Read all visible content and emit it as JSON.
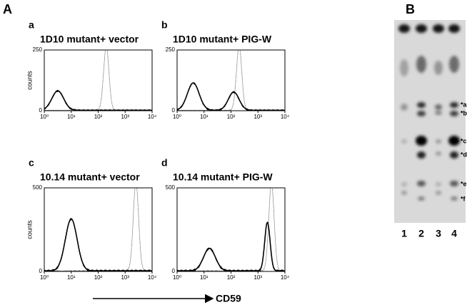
{
  "panel_A": {
    "label": "A",
    "plots": [
      {
        "letter": "a",
        "title": "1D10 mutant+ vector",
        "y_label": "counts",
        "y_ticks": [
          "250",
          "0"
        ],
        "x_ticks": [
          "10⁰",
          "10¹",
          "10²",
          "10³",
          "10⁴"
        ]
      },
      {
        "letter": "b",
        "title": "1D10 mutant+ PIG-W",
        "y_ticks": [
          "250",
          "0"
        ],
        "x_ticks": [
          "10⁰",
          "10¹",
          "10²",
          "10³",
          "10⁴"
        ]
      },
      {
        "letter": "c",
        "title": "10.14 mutant+ vector",
        "y_label": "counts",
        "y_ticks": [
          "500",
          "0"
        ],
        "x_ticks": [
          "10⁰",
          "10¹",
          "10²",
          "10³",
          "10⁴"
        ]
      },
      {
        "letter": "d",
        "title": "10.14 mutant+ PIG-W",
        "y_ticks": [
          "500",
          "0"
        ],
        "x_ticks": [
          "10⁰",
          "10¹",
          "10²",
          "10³",
          "10⁴"
        ]
      }
    ],
    "x_axis_label": "CD59"
  },
  "panel_B": {
    "label": "B",
    "lanes": [
      "1",
      "2",
      "3",
      "4"
    ],
    "bands": [
      "*a",
      "*b",
      "*c",
      "*d",
      "*e",
      "*f"
    ]
  }
}
